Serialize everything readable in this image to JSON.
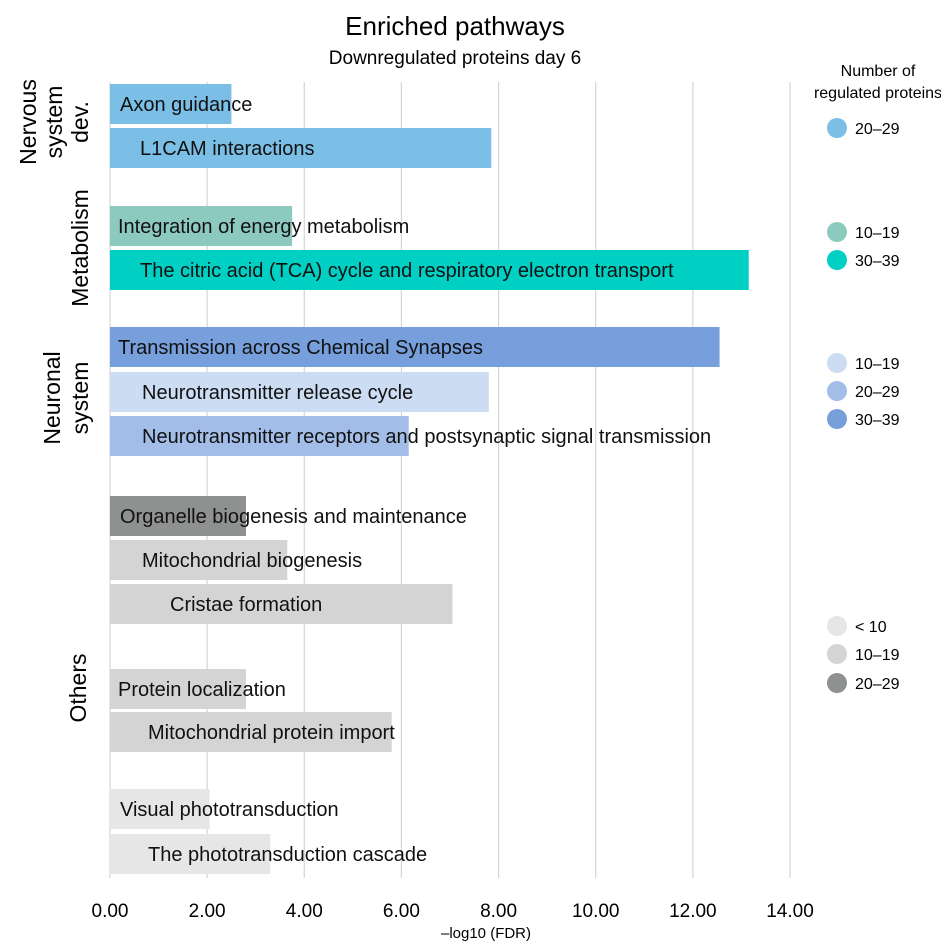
{
  "chart_data": {
    "type": "bar",
    "orientation": "horizontal",
    "title": "Enriched pathways",
    "subtitle": "Downregulated proteins day 6",
    "xlabel": "–log10 (FDR)",
    "xlim": [
      0,
      14
    ],
    "x_ticks": [
      "0.00",
      "2.00",
      "4.00",
      "6.00",
      "8.00",
      "10.00",
      "12.00",
      "14.00"
    ],
    "grid": "vertical",
    "legend_title": "Number of regulated proteins",
    "legend_position": "right",
    "groups": [
      {
        "name_lines": [
          "Nervous",
          "system",
          "dev."
        ],
        "bars": [
          {
            "label": "Axon guidance",
            "value": 2.5,
            "color": "#7bbfe6",
            "count_range": "20–29"
          },
          {
            "label": "L1CAM interactions",
            "value": 7.85,
            "color": "#7bbfe6",
            "count_range": "20–29"
          }
        ],
        "legend": [
          {
            "label": "20–29",
            "color": "#7bbfe6"
          }
        ]
      },
      {
        "name_lines": [
          "Metabolism"
        ],
        "bars": [
          {
            "label": "Integration of energy metabolism",
            "value": 3.75,
            "color": "#8cc9bf",
            "count_range": "10–19"
          },
          {
            "label": "The citric acid (TCA) cycle and respiratory electron transport",
            "value": 13.15,
            "color": "#00cfc4",
            "count_range": "30–39"
          }
        ],
        "legend": [
          {
            "label": "10–19",
            "color": "#8cc9bf"
          },
          {
            "label": "30–39",
            "color": "#00cfc4"
          }
        ]
      },
      {
        "name_lines": [
          "Neuronal",
          "system"
        ],
        "bars": [
          {
            "label": "Transmission across Chemical Synapses",
            "value": 12.55,
            "color": "#769fdb",
            "count_range": "30–39"
          },
          {
            "label": "Neurotransmitter release cycle",
            "value": 7.8,
            "color": "#ccdcf2",
            "count_range": "10–19"
          },
          {
            "label": "Neurotransmitter receptors and postsynaptic signal transmission",
            "value": 6.15,
            "color": "#a2bde8",
            "count_range": "20–29"
          }
        ],
        "legend": [
          {
            "label": "10–19",
            "color": "#ccdcf2"
          },
          {
            "label": "20–29",
            "color": "#a2bde8"
          },
          {
            "label": "30–39",
            "color": "#769fdb"
          }
        ]
      },
      {
        "name_lines": [
          "Others"
        ],
        "bars": [
          {
            "label": "Organelle biogenesis and maintenance",
            "value": 2.8,
            "color": "#8f9190",
            "count_range": "20–29"
          },
          {
            "label": "Mitochondrial biogenesis",
            "value": 3.65,
            "color": "#d3d4d3",
            "count_range": "10–19"
          },
          {
            "label": "Cristae formation",
            "value": 7.05,
            "color": "#d3d4d3",
            "count_range": "10–19"
          },
          {
            "label": "Protein localization",
            "value": 2.8,
            "color": "#d3d4d3",
            "count_range": "10–19"
          },
          {
            "label": "Mitochondrial protein import",
            "value": 5.8,
            "color": "#d3d4d3",
            "count_range": "10–19"
          },
          {
            "label": "Visual phototransduction",
            "value": 2.05,
            "color": "#e6e6e6",
            "count_range": "< 10"
          },
          {
            "label": "The phototransduction cascade",
            "value": 3.3,
            "color": "#e6e6e6",
            "count_range": "< 10"
          }
        ],
        "legend": [
          {
            "label": "< 10",
            "color": "#e6e6e6"
          },
          {
            "label": "10–19",
            "color": "#d3d4d3"
          },
          {
            "label": "20–29",
            "color": "#8f9190"
          }
        ]
      }
    ]
  }
}
